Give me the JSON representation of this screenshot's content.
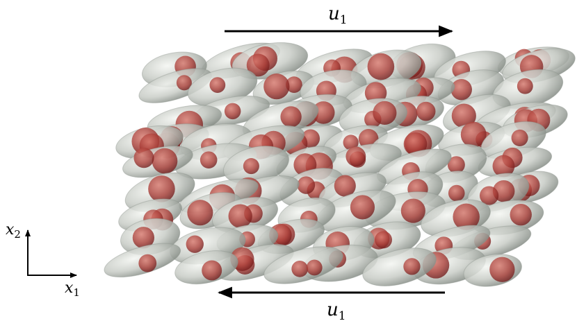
{
  "flow_labels": {
    "top": {
      "symbol": "u",
      "subscript": "1"
    },
    "bottom": {
      "symbol": "u",
      "subscript": "1"
    }
  },
  "axes": {
    "vertical": {
      "symbol": "x",
      "subscript": "2"
    },
    "horizontal": {
      "symbol": "x",
      "subscript": "1"
    }
  }
}
